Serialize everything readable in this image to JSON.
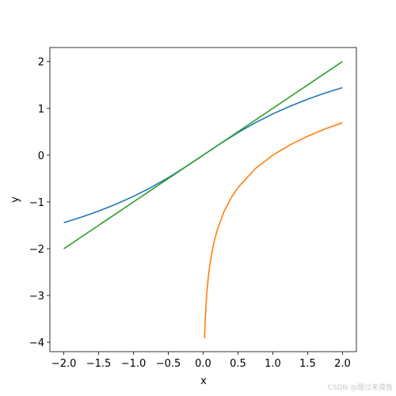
{
  "chart_data": {
    "type": "line",
    "xlabel": "x",
    "ylabel": "y",
    "xlim": [
      -2.2,
      2.2
    ],
    "ylim": [
      -4.2,
      2.3
    ],
    "xticks": [
      {
        "value": -2,
        "label": "−2.0"
      },
      {
        "value": -1.5,
        "label": "−1.5"
      },
      {
        "value": -1,
        "label": "−1.0"
      },
      {
        "value": -0.5,
        "label": "−0.5"
      },
      {
        "value": 0,
        "label": "0.0"
      },
      {
        "value": 0.5,
        "label": "0.5"
      },
      {
        "value": 1,
        "label": "1.0"
      },
      {
        "value": 1.5,
        "label": "1.5"
      },
      {
        "value": 2,
        "label": "2.0"
      }
    ],
    "yticks": [
      {
        "value": -4,
        "label": "−4"
      },
      {
        "value": -3,
        "label": "−3"
      },
      {
        "value": -2,
        "label": "−2"
      },
      {
        "value": -1,
        "label": "−1"
      },
      0,
      1,
      2
    ],
    "series": [
      {
        "color": "#1f77b4",
        "x": [
          -2,
          -1.75,
          -1.5,
          -1.25,
          -1,
          -0.75,
          -0.5,
          -0.25,
          0,
          0.25,
          0.5,
          0.75,
          1,
          1.25,
          1.5,
          1.75,
          2
        ],
        "values": [
          -1.4436,
          -1.3262,
          -1.1948,
          -1.0476,
          -0.8814,
          -0.6931,
          -0.4812,
          -0.2475,
          0,
          0.2475,
          0.4812,
          0.6931,
          0.8814,
          1.0476,
          1.1948,
          1.3262,
          1.4436
        ]
      },
      {
        "color": "#ff7f0e",
        "x": [
          0.02,
          0.03,
          0.05,
          0.075,
          0.1,
          0.15,
          0.2,
          0.3,
          0.4,
          0.5,
          0.75,
          1,
          1.25,
          1.5,
          1.75,
          2
        ],
        "values": [
          -3.912,
          -3.507,
          -2.996,
          -2.59,
          -2.303,
          -1.897,
          -1.609,
          -1.204,
          -0.916,
          -0.693,
          -0.288,
          0,
          0.223,
          0.405,
          0.56,
          0.693
        ]
      },
      {
        "color": "#2ca02c",
        "x": [
          -2,
          2
        ],
        "values": [
          -2,
          2
        ]
      }
    ]
  },
  "watermark": "CSDN @醒过来摸鱼"
}
